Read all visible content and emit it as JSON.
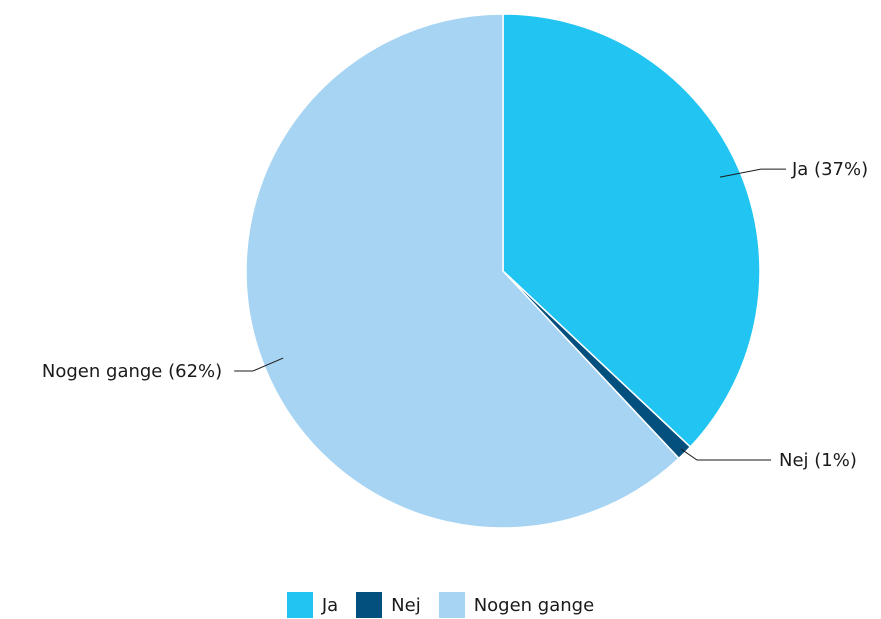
{
  "chart_data": {
    "type": "pie",
    "title": "",
    "start_angle_deg": 0,
    "direction": "clockwise",
    "legend_position": "bottom",
    "slices": [
      {
        "name": "Ja",
        "value": 37,
        "label": "Ja (37%)",
        "color": "#22c4f2"
      },
      {
        "name": "Nej",
        "value": 1,
        "label": "Nej (1%)",
        "color": "#03507f"
      },
      {
        "name": "Nogen gange",
        "value": 62,
        "label": "Nogen gange (62%)",
        "color": "#a8d4f3"
      }
    ]
  },
  "legend": {
    "items": [
      {
        "label": "Ja",
        "color": "#22c4f2"
      },
      {
        "label": "Nej",
        "color": "#03507f"
      },
      {
        "label": "Nogen gange",
        "color": "#a8d4f3"
      }
    ]
  }
}
